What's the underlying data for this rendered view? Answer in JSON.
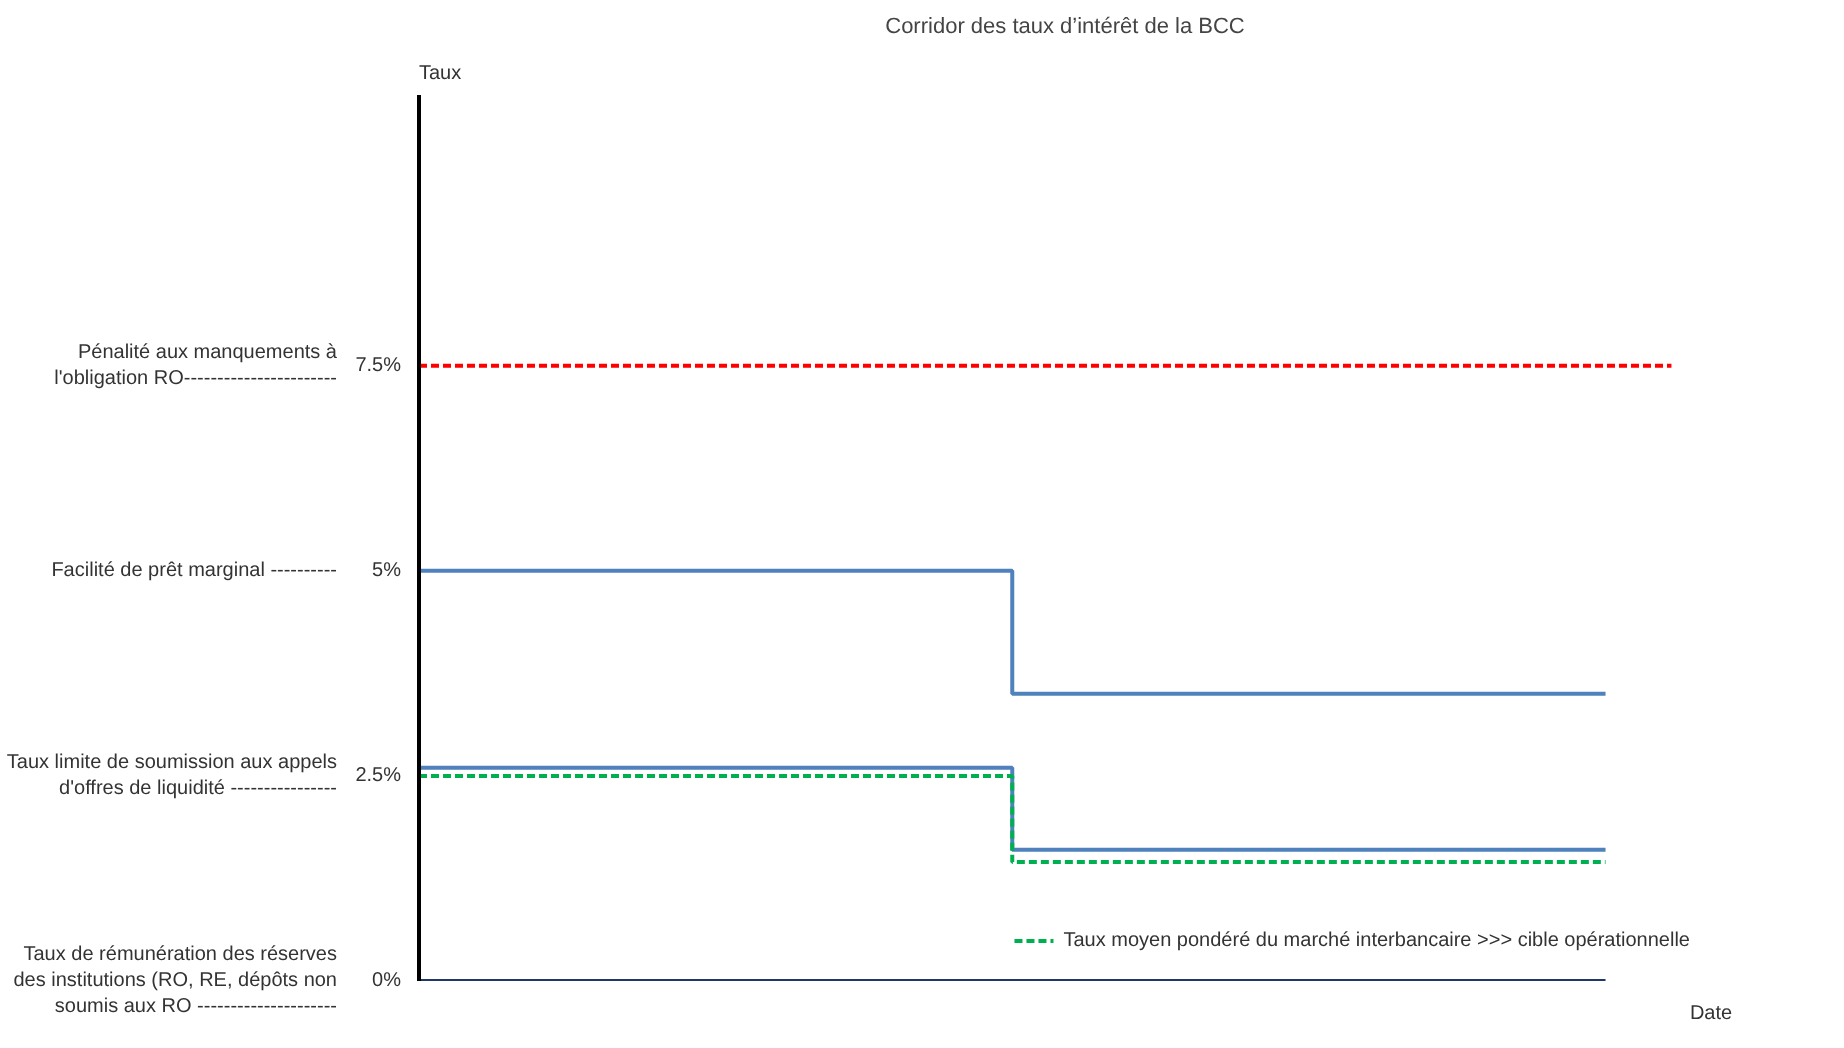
{
  "chart_data": {
    "type": "step",
    "title": "Corridor des taux d’intérêt de la BCC",
    "xlabel": "Date",
    "ylabel": "Taux",
    "categories": [
      null,
      null,
      null,
      null,
      null,
      null,
      null,
      null,
      null,
      null,
      null,
      null,
      null,
      null,
      null,
      null,
      null,
      null,
      null,
      null
    ],
    "ylim": [
      0,
      10.8
    ],
    "yticks": [
      {
        "value": 0,
        "label": "0%"
      },
      {
        "value": 2.5,
        "label": "2.5%"
      },
      {
        "value": 5,
        "label": "5%"
      },
      {
        "value": 7.5,
        "label": "7.5%"
      }
    ],
    "annotations": [
      "Taux de rémunération des réserves\ndes institutions (RO, RE, dépôts non\nsoumis aux RO ---------------------",
      "Taux limite de soumission aux appels\nd'offres de liquidité ----------------",
      "Facilité de prêt marginal ----------",
      "Pénalité aux manquements à\nl'obligation RO-----------------------"
    ],
    "series": [
      {
        "color": "#ff0000",
        "line_style": "dashed",
        "values": [
          7.5,
          7.5,
          7.5,
          7.5,
          7.5,
          7.5,
          7.5,
          7.5,
          7.5,
          7.5,
          7.5,
          7.5,
          7.5,
          7.5,
          7.5,
          7.5,
          7.5,
          7.5,
          7.5,
          7.5
        ]
      },
      {
        "color": "#4f81bd",
        "line_style": "solid",
        "values": [
          5,
          5,
          5,
          5,
          5,
          5,
          5,
          5,
          5,
          3.5,
          3.5,
          3.5,
          3.5,
          3.5,
          3.5,
          3.5,
          3.5,
          3.5,
          3.5,
          null
        ]
      },
      {
        "color": "#4f81bd",
        "line_style": "solid",
        "values": [
          2.6,
          2.6,
          2.6,
          2.6,
          2.6,
          2.6,
          2.6,
          2.6,
          2.6,
          1.6,
          1.6,
          1.6,
          1.6,
          1.6,
          1.6,
          1.6,
          1.6,
          1.6,
          1.6,
          null
        ]
      },
      {
        "name": "Taux moyen pondéré du marché interbancaire >>> cible opérationnelle",
        "color": "#00b050",
        "line_style": "dashed",
        "values": [
          2.5,
          2.5,
          2.5,
          2.5,
          2.5,
          2.5,
          2.5,
          2.5,
          2.5,
          1.45,
          1.45,
          1.45,
          1.45,
          1.45,
          1.45,
          1.45,
          1.45,
          1.45,
          1.45,
          null
        ]
      },
      {
        "color": "#1f3864",
        "line_style": "solid",
        "values": [
          0,
          0,
          0,
          0,
          0,
          0,
          0,
          0,
          0,
          0,
          0,
          0,
          0,
          0,
          0,
          0,
          0,
          0,
          0,
          null
        ]
      }
    ],
    "grid": false,
    "legend": "bottom",
    "tick_labels": "y"
  }
}
